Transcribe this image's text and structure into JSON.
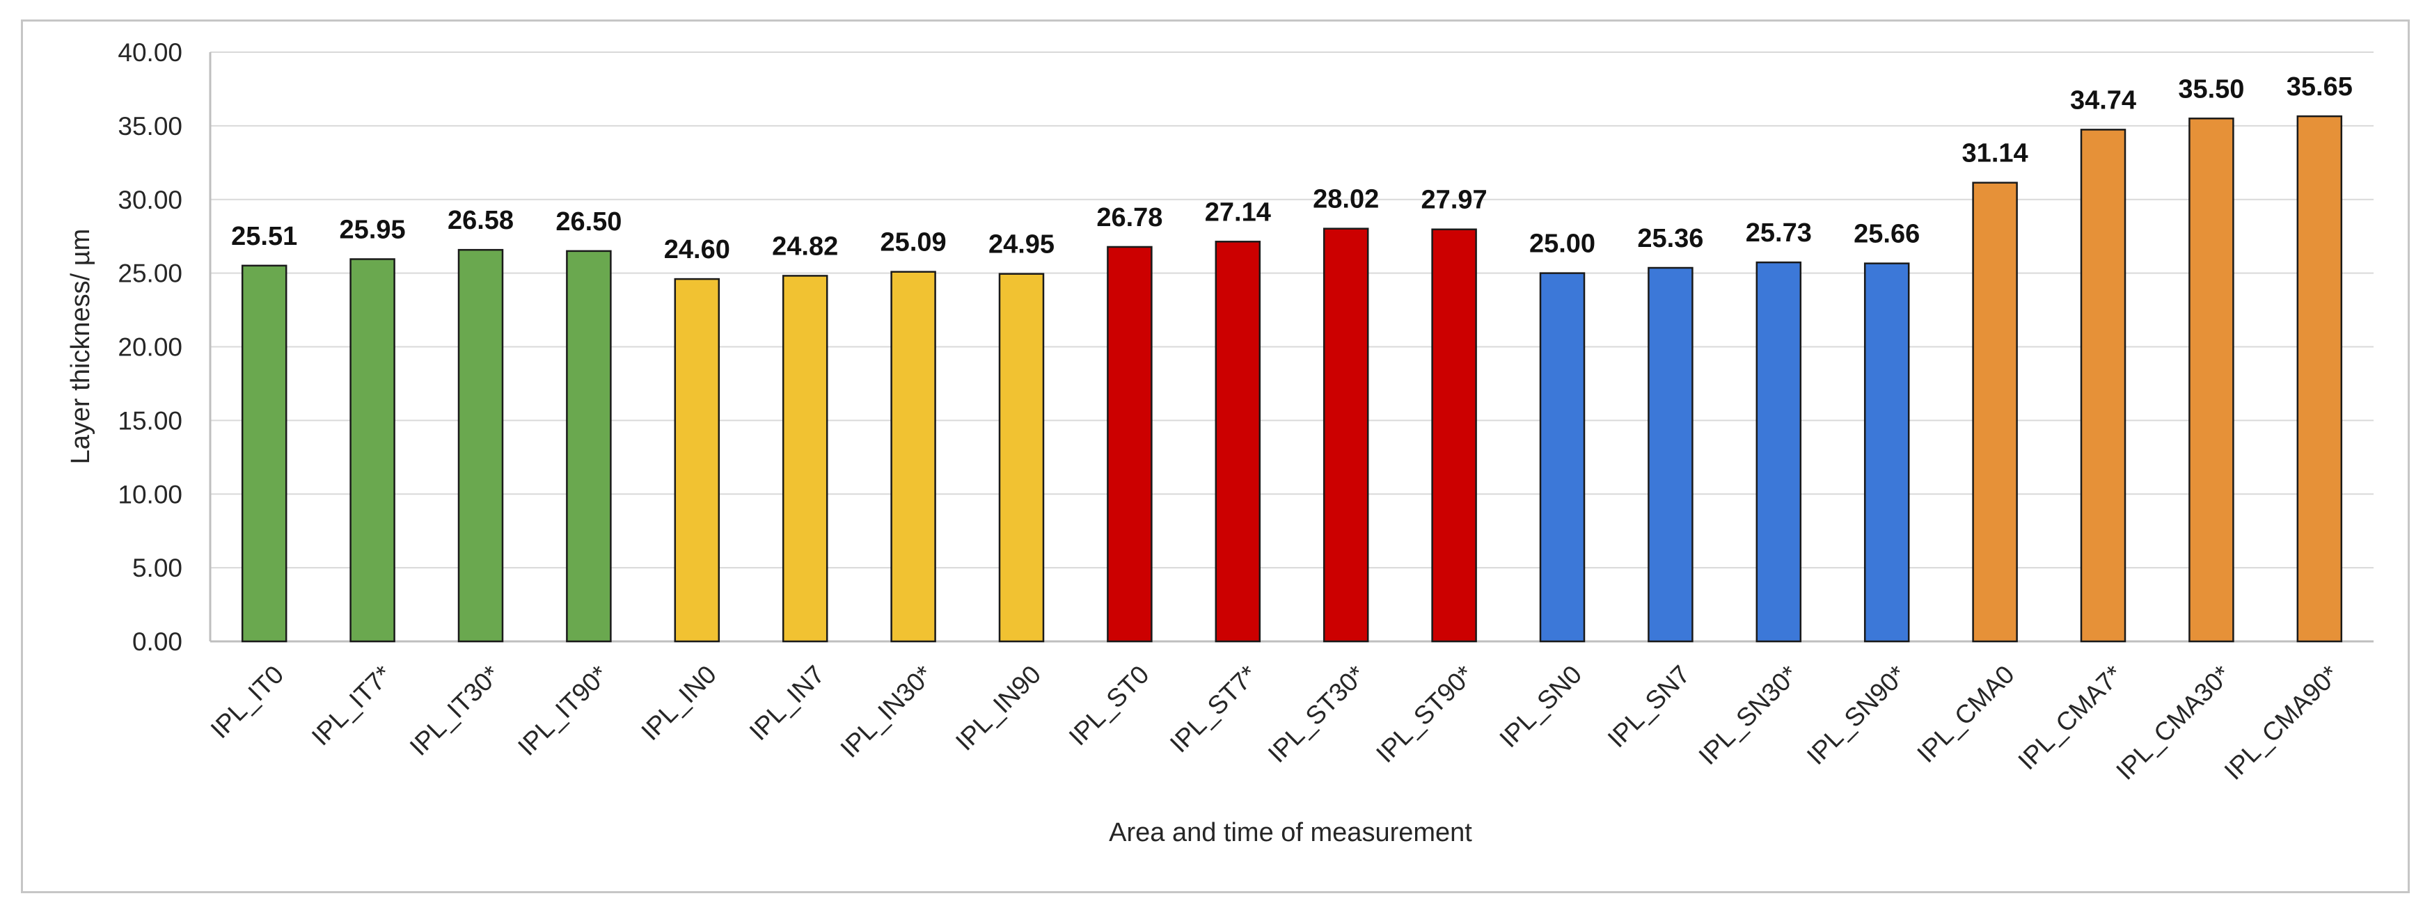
{
  "chart_data": {
    "type": "bar",
    "title": "",
    "xlabel": "Area and time of measurement",
    "ylabel": "Layer thickness/ µm",
    "ylim": [
      0,
      40
    ],
    "yticks": [
      "0.00",
      "5.00",
      "10.00",
      "15.00",
      "20.00",
      "25.00",
      "30.00",
      "35.00",
      "40.00"
    ],
    "grid": "horizontal",
    "legend": "none",
    "categories": [
      "IPL_IT0",
      "IPL_IT7*",
      "IPL_IT30*",
      "IPL_IT90*",
      "IPL_IN0",
      "IPL_IN7",
      "IPL_IN30*",
      "IPL_IN90",
      "IPL_ST0",
      "IPL_ST7*",
      "IPL_ST30*",
      "IPL_ST90*",
      "IPL_SN0",
      "IPL_SN7",
      "IPL_SN30*",
      "IPL_SN90*",
      "IPL_CMA0",
      "IPL_CMA7*",
      "IPL_CMA30*",
      "IPL_CMA90*"
    ],
    "values": [
      25.51,
      25.95,
      26.58,
      26.5,
      24.6,
      24.82,
      25.09,
      24.95,
      26.78,
      27.14,
      28.02,
      27.97,
      25.0,
      25.36,
      25.73,
      25.66,
      31.14,
      34.74,
      35.5,
      35.65
    ],
    "value_labels": [
      "25.51",
      "25.95",
      "26.58",
      "26.50",
      "24.60",
      "24.82",
      "25.09",
      "24.95",
      "26.78",
      "27.14",
      "28.02",
      "27.97",
      "25.00",
      "25.36",
      "25.73",
      "25.66",
      "31.14",
      "34.74",
      "35.50",
      "35.65"
    ],
    "bar_colors": [
      "#6aa84f",
      "#6aa84f",
      "#6aa84f",
      "#6aa84f",
      "#f1c232",
      "#f1c232",
      "#f1c232",
      "#f1c232",
      "#cc0000",
      "#cc0000",
      "#cc0000",
      "#cc0000",
      "#3c78d8",
      "#3c78d8",
      "#3c78d8",
      "#3c78d8",
      "#e69138",
      "#e69138",
      "#e69138",
      "#e69138"
    ]
  },
  "colors": {
    "grid": "#d9d9d9",
    "axis": "#bfbfbf",
    "bar_outline": "#1a1a1a",
    "frame": "#c6c6c6"
  }
}
